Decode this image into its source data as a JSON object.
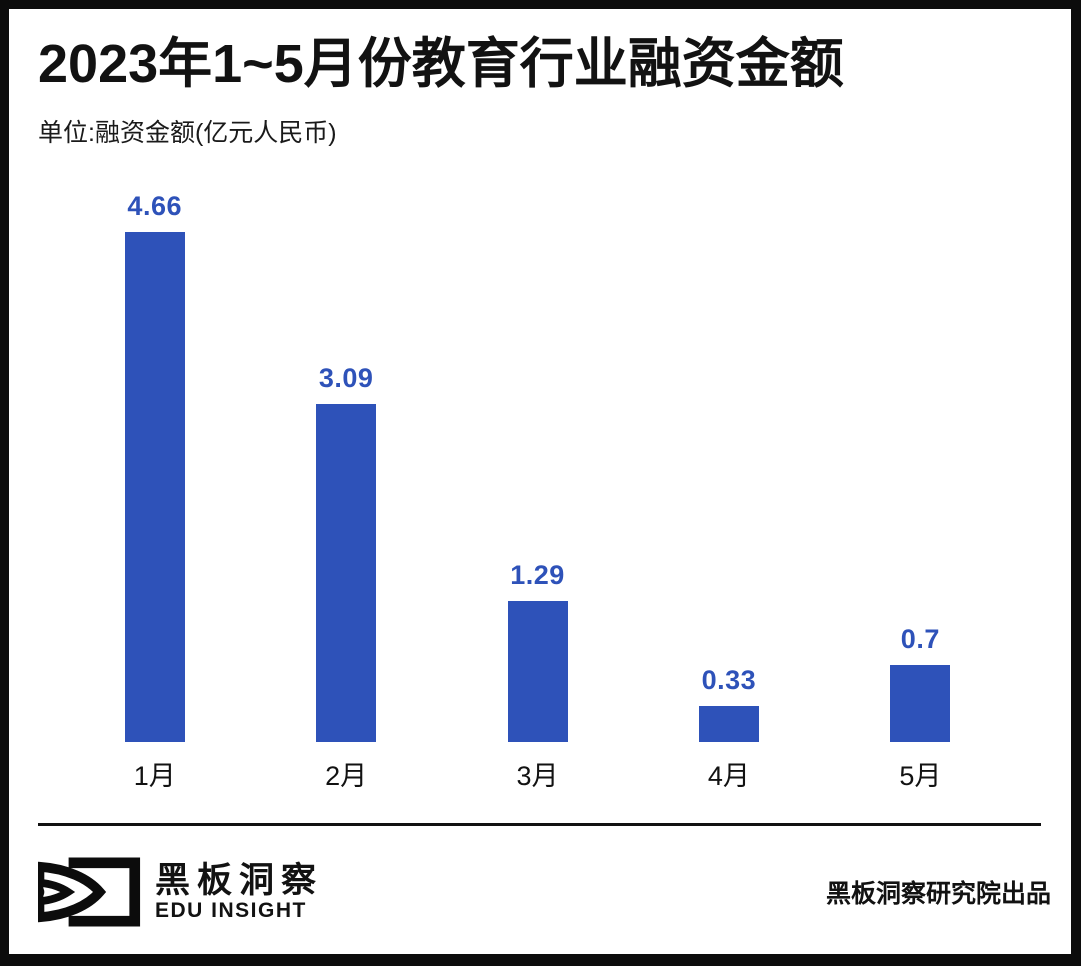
{
  "header": {
    "title": "2023年1~5月份教育行业融资金额",
    "unit_label": "单位:融资金额(亿元人民币)"
  },
  "chart_data": {
    "type": "bar",
    "categories": [
      "1月",
      "2月",
      "3月",
      "4月",
      "5月"
    ],
    "values": [
      4.66,
      3.09,
      1.29,
      0.33,
      0.7
    ],
    "title": "2023年1~5月份教育行业融资金额",
    "xlabel": "",
    "ylabel": "融资金额(亿元人民币)",
    "ylim": [
      0,
      5
    ],
    "grid": false,
    "legend": false,
    "bar_color": "#2e52b9",
    "value_label_color": "#2e52b9",
    "value_labels_shown": true
  },
  "footer": {
    "brand_cn": "黑板洞察",
    "brand_en": "EDU INSIGHT",
    "logo_icon": "eye-icon",
    "credit": "黑板洞察研究院出品"
  }
}
